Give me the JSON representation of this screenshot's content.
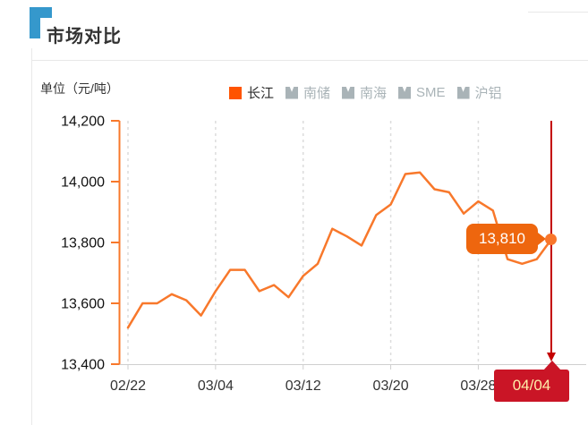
{
  "header": {
    "title": "市场对比"
  },
  "chart": {
    "unit_label": "单位（元/吨）",
    "legend": [
      {
        "label": "长江",
        "active": true
      },
      {
        "label": "南储",
        "active": false
      },
      {
        "label": "南海",
        "active": false
      },
      {
        "label": "SME",
        "active": false
      },
      {
        "label": "沪铝",
        "active": false
      }
    ],
    "value_callout": "13,810",
    "axis_pointer_label": "04/04"
  },
  "chart_data": {
    "type": "line",
    "title": "市场对比",
    "unit": "元/吨",
    "x": [
      "02/22",
      "02/25",
      "02/26",
      "02/27",
      "02/28",
      "03/01",
      "03/04",
      "03/05",
      "03/06",
      "03/07",
      "03/08",
      "03/11",
      "03/12",
      "03/13",
      "03/14",
      "03/15",
      "03/18",
      "03/19",
      "03/20",
      "03/21",
      "03/22",
      "03/25",
      "03/26",
      "03/27",
      "03/28",
      "03/29",
      "04/01",
      "04/02",
      "04/03",
      "04/04"
    ],
    "series": [
      {
        "name": "长江",
        "values": [
          13520,
          13600,
          13600,
          13630,
          13610,
          13560,
          13640,
          13710,
          13710,
          13640,
          13660,
          13620,
          13690,
          13730,
          13845,
          13820,
          13790,
          13890,
          13925,
          14025,
          14030,
          13975,
          13965,
          13895,
          13935,
          13905,
          13745,
          13730,
          13745,
          13810
        ]
      }
    ],
    "inactive_series_names": [
      "南储",
      "南海",
      "SME",
      "沪铝"
    ],
    "x_tick_labels": [
      "02/22",
      "03/04",
      "03/12",
      "03/20",
      "03/28",
      "04/04"
    ],
    "y_ticks": [
      13400,
      13600,
      13800,
      14000,
      14200
    ],
    "y_tick_labels": [
      "13,400",
      "13,600",
      "13,800",
      "14,000",
      "14,200"
    ],
    "ylim": [
      13400,
      14200
    ],
    "grid": "dashed-vertical",
    "legend_position": "top",
    "highlight": {
      "x_label": "04/04",
      "value": 13810,
      "value_label": "13,810"
    }
  },
  "colors": {
    "line_orange": "#f8782b",
    "legend_active_orange": "#ff5400",
    "callout_orange": "#ee660e",
    "pointer_red": "#c40000",
    "date_box_red": "#ca1526",
    "title_corner_blue": "#3598cc",
    "inactive_gray": "#a9b3b7",
    "gridline_gray": "#dcdcdc"
  }
}
